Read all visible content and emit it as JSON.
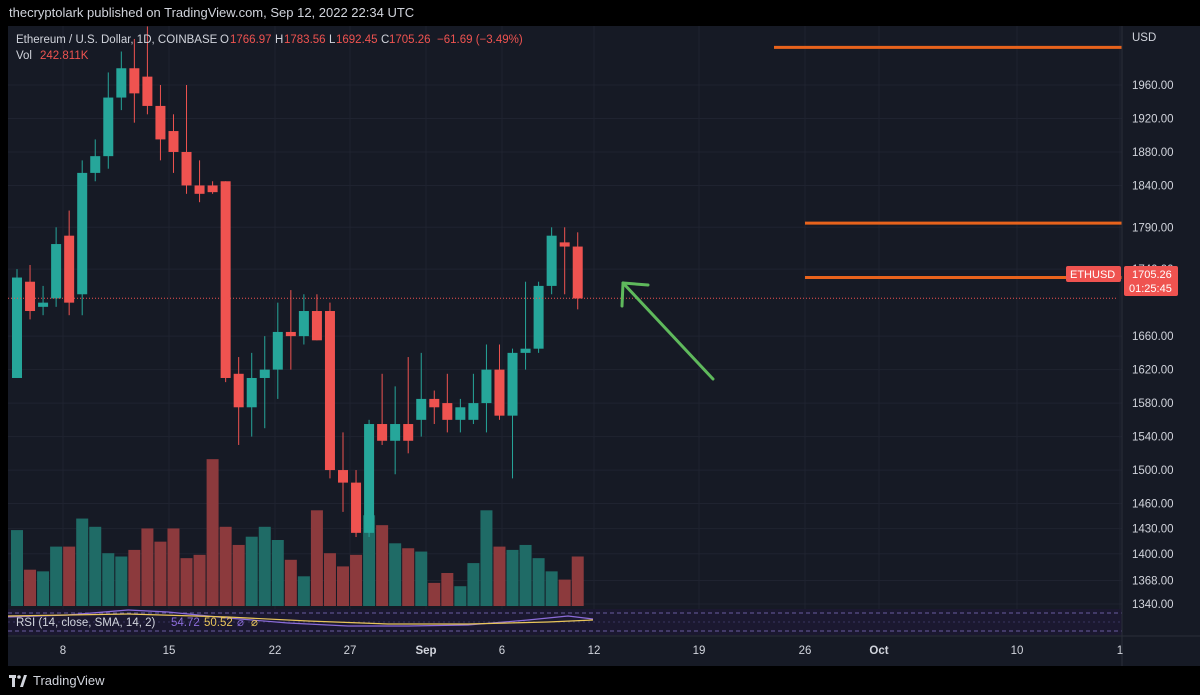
{
  "publish_header": "thecryptolark published on TradingView.com, Sep 12, 2022 22:34 UTC",
  "legend": {
    "symbol": "Ethereum / U.S. Dollar, 1D, COINBASE",
    "open_label": "O",
    "open_value": "1766.97",
    "high_label": "H",
    "high_value": "1783.56",
    "low_label": "L",
    "low_value": "1692.45",
    "close_label": "C",
    "close_value": "1705.26",
    "change": "−61.69 (−3.49%)",
    "vol_label": "Vol",
    "vol_value": "242.811K"
  },
  "rsi_legend": {
    "label": "RSI (14, close, SMA, 14, 2)",
    "rsi_value": "54.72",
    "sma_value": "50.52",
    "extra1": "⌀",
    "extra2": "⌀"
  },
  "price_axis": {
    "currency": "USD",
    "ticks": [
      "1960.00",
      "1920.00",
      "1880.00",
      "1840.00",
      "1790.00",
      "1740.00",
      "1660.00",
      "1620.00",
      "1580.00",
      "1540.00",
      "1500.00",
      "1460.00",
      "1430.00",
      "1400.00",
      "1368.00",
      "1340.00"
    ]
  },
  "time_axis": {
    "labels": [
      "8",
      "15",
      "22",
      "27",
      "Sep",
      "6",
      "12",
      "19",
      "26",
      "Oct",
      "10",
      "1"
    ]
  },
  "price_badge": {
    "symbol": "ETHUSD",
    "price": "1705.26",
    "countdown": "01:25:45"
  },
  "footer_brand": "TradingView",
  "colors": {
    "up": "#26a69a",
    "down": "#ef5350",
    "vol_up": "#1f6b66",
    "vol_down": "#8c3a3d",
    "level_line": "#e8631c",
    "arrow": "#5fb95c",
    "rsi_line": "#8c6cd9",
    "rsi_sma": "#e8c55a",
    "background": "#161a25"
  },
  "chart_data": {
    "type": "candlestick",
    "title": "Ethereum / U.S. Dollar, 1D, COINBASE",
    "x_start_date": "2022-08-05",
    "candles": [
      {
        "o": 1610,
        "h": 1740,
        "l": 1610,
        "c": 1730
      },
      {
        "o": 1725,
        "h": 1745,
        "l": 1680,
        "c": 1690
      },
      {
        "o": 1695,
        "h": 1720,
        "l": 1685,
        "c": 1700
      },
      {
        "o": 1705,
        "h": 1790,
        "l": 1695,
        "c": 1770
      },
      {
        "o": 1780,
        "h": 1810,
        "l": 1685,
        "c": 1700
      },
      {
        "o": 1710,
        "h": 1870,
        "l": 1685,
        "c": 1855
      },
      {
        "o": 1855,
        "h": 1895,
        "l": 1845,
        "c": 1875
      },
      {
        "o": 1875,
        "h": 1975,
        "l": 1860,
        "c": 1945
      },
      {
        "o": 1945,
        "h": 2000,
        "l": 1930,
        "c": 1980
      },
      {
        "o": 1980,
        "h": 2015,
        "l": 1915,
        "c": 1950
      },
      {
        "o": 1970,
        "h": 2030,
        "l": 1925,
        "c": 1935
      },
      {
        "o": 1935,
        "h": 1960,
        "l": 1870,
        "c": 1895
      },
      {
        "o": 1905,
        "h": 1925,
        "l": 1855,
        "c": 1880
      },
      {
        "o": 1880,
        "h": 1960,
        "l": 1830,
        "c": 1840
      },
      {
        "o": 1840,
        "h": 1870,
        "l": 1820,
        "c": 1830
      },
      {
        "o": 1840,
        "h": 1845,
        "l": 1830,
        "c": 1832
      },
      {
        "o": 1845,
        "h": 1845,
        "l": 1605,
        "c": 1610
      },
      {
        "o": 1615,
        "h": 1635,
        "l": 1530,
        "c": 1575
      },
      {
        "o": 1575,
        "h": 1640,
        "l": 1540,
        "c": 1610
      },
      {
        "o": 1610,
        "h": 1660,
        "l": 1550,
        "c": 1620
      },
      {
        "o": 1620,
        "h": 1700,
        "l": 1585,
        "c": 1665
      },
      {
        "o": 1665,
        "h": 1715,
        "l": 1620,
        "c": 1660
      },
      {
        "o": 1660,
        "h": 1710,
        "l": 1650,
        "c": 1690
      },
      {
        "o": 1690,
        "h": 1710,
        "l": 1655,
        "c": 1655
      },
      {
        "o": 1690,
        "h": 1700,
        "l": 1490,
        "c": 1500
      },
      {
        "o": 1500,
        "h": 1545,
        "l": 1450,
        "c": 1485
      },
      {
        "o": 1485,
        "h": 1500,
        "l": 1420,
        "c": 1425
      },
      {
        "o": 1425,
        "h": 1560,
        "l": 1420,
        "c": 1555
      },
      {
        "o": 1555,
        "h": 1615,
        "l": 1530,
        "c": 1535
      },
      {
        "o": 1535,
        "h": 1600,
        "l": 1495,
        "c": 1555
      },
      {
        "o": 1555,
        "h": 1635,
        "l": 1520,
        "c": 1535
      },
      {
        "o": 1560,
        "h": 1640,
        "l": 1540,
        "c": 1585
      },
      {
        "o": 1585,
        "h": 1595,
        "l": 1555,
        "c": 1575
      },
      {
        "o": 1580,
        "h": 1615,
        "l": 1545,
        "c": 1560
      },
      {
        "o": 1560,
        "h": 1585,
        "l": 1545,
        "c": 1575
      },
      {
        "o": 1560,
        "h": 1615,
        "l": 1555,
        "c": 1580
      },
      {
        "o": 1580,
        "h": 1650,
        "l": 1545,
        "c": 1620
      },
      {
        "o": 1620,
        "h": 1650,
        "l": 1560,
        "c": 1565
      },
      {
        "o": 1565,
        "h": 1645,
        "l": 1490,
        "c": 1640
      },
      {
        "o": 1640,
        "h": 1725,
        "l": 1620,
        "c": 1645
      },
      {
        "o": 1645,
        "h": 1725,
        "l": 1640,
        "c": 1720
      },
      {
        "o": 1720,
        "h": 1790,
        "l": 1710,
        "c": 1780
      },
      {
        "o": 1772,
        "h": 1790,
        "l": 1710,
        "c": 1767
      },
      {
        "o": 1767,
        "h": 1784,
        "l": 1692,
        "c": 1705
      }
    ],
    "volume_relative": [
      0.46,
      0.22,
      0.21,
      0.36,
      0.36,
      0.53,
      0.48,
      0.32,
      0.3,
      0.34,
      0.47,
      0.39,
      0.47,
      0.29,
      0.31,
      0.89,
      0.48,
      0.37,
      0.42,
      0.48,
      0.4,
      0.28,
      0.18,
      0.58,
      0.32,
      0.24,
      0.31,
      0.55,
      0.49,
      0.38,
      0.35,
      0.33,
      0.14,
      0.2,
      0.12,
      0.26,
      0.58,
      0.36,
      0.34,
      0.37,
      0.29,
      0.21,
      0.16,
      0.3
    ],
    "levels": [
      2005,
      1795,
      1730
    ],
    "current_price": 1705.26,
    "ylim": [
      1340,
      2040
    ],
    "ylabel": "USD"
  }
}
